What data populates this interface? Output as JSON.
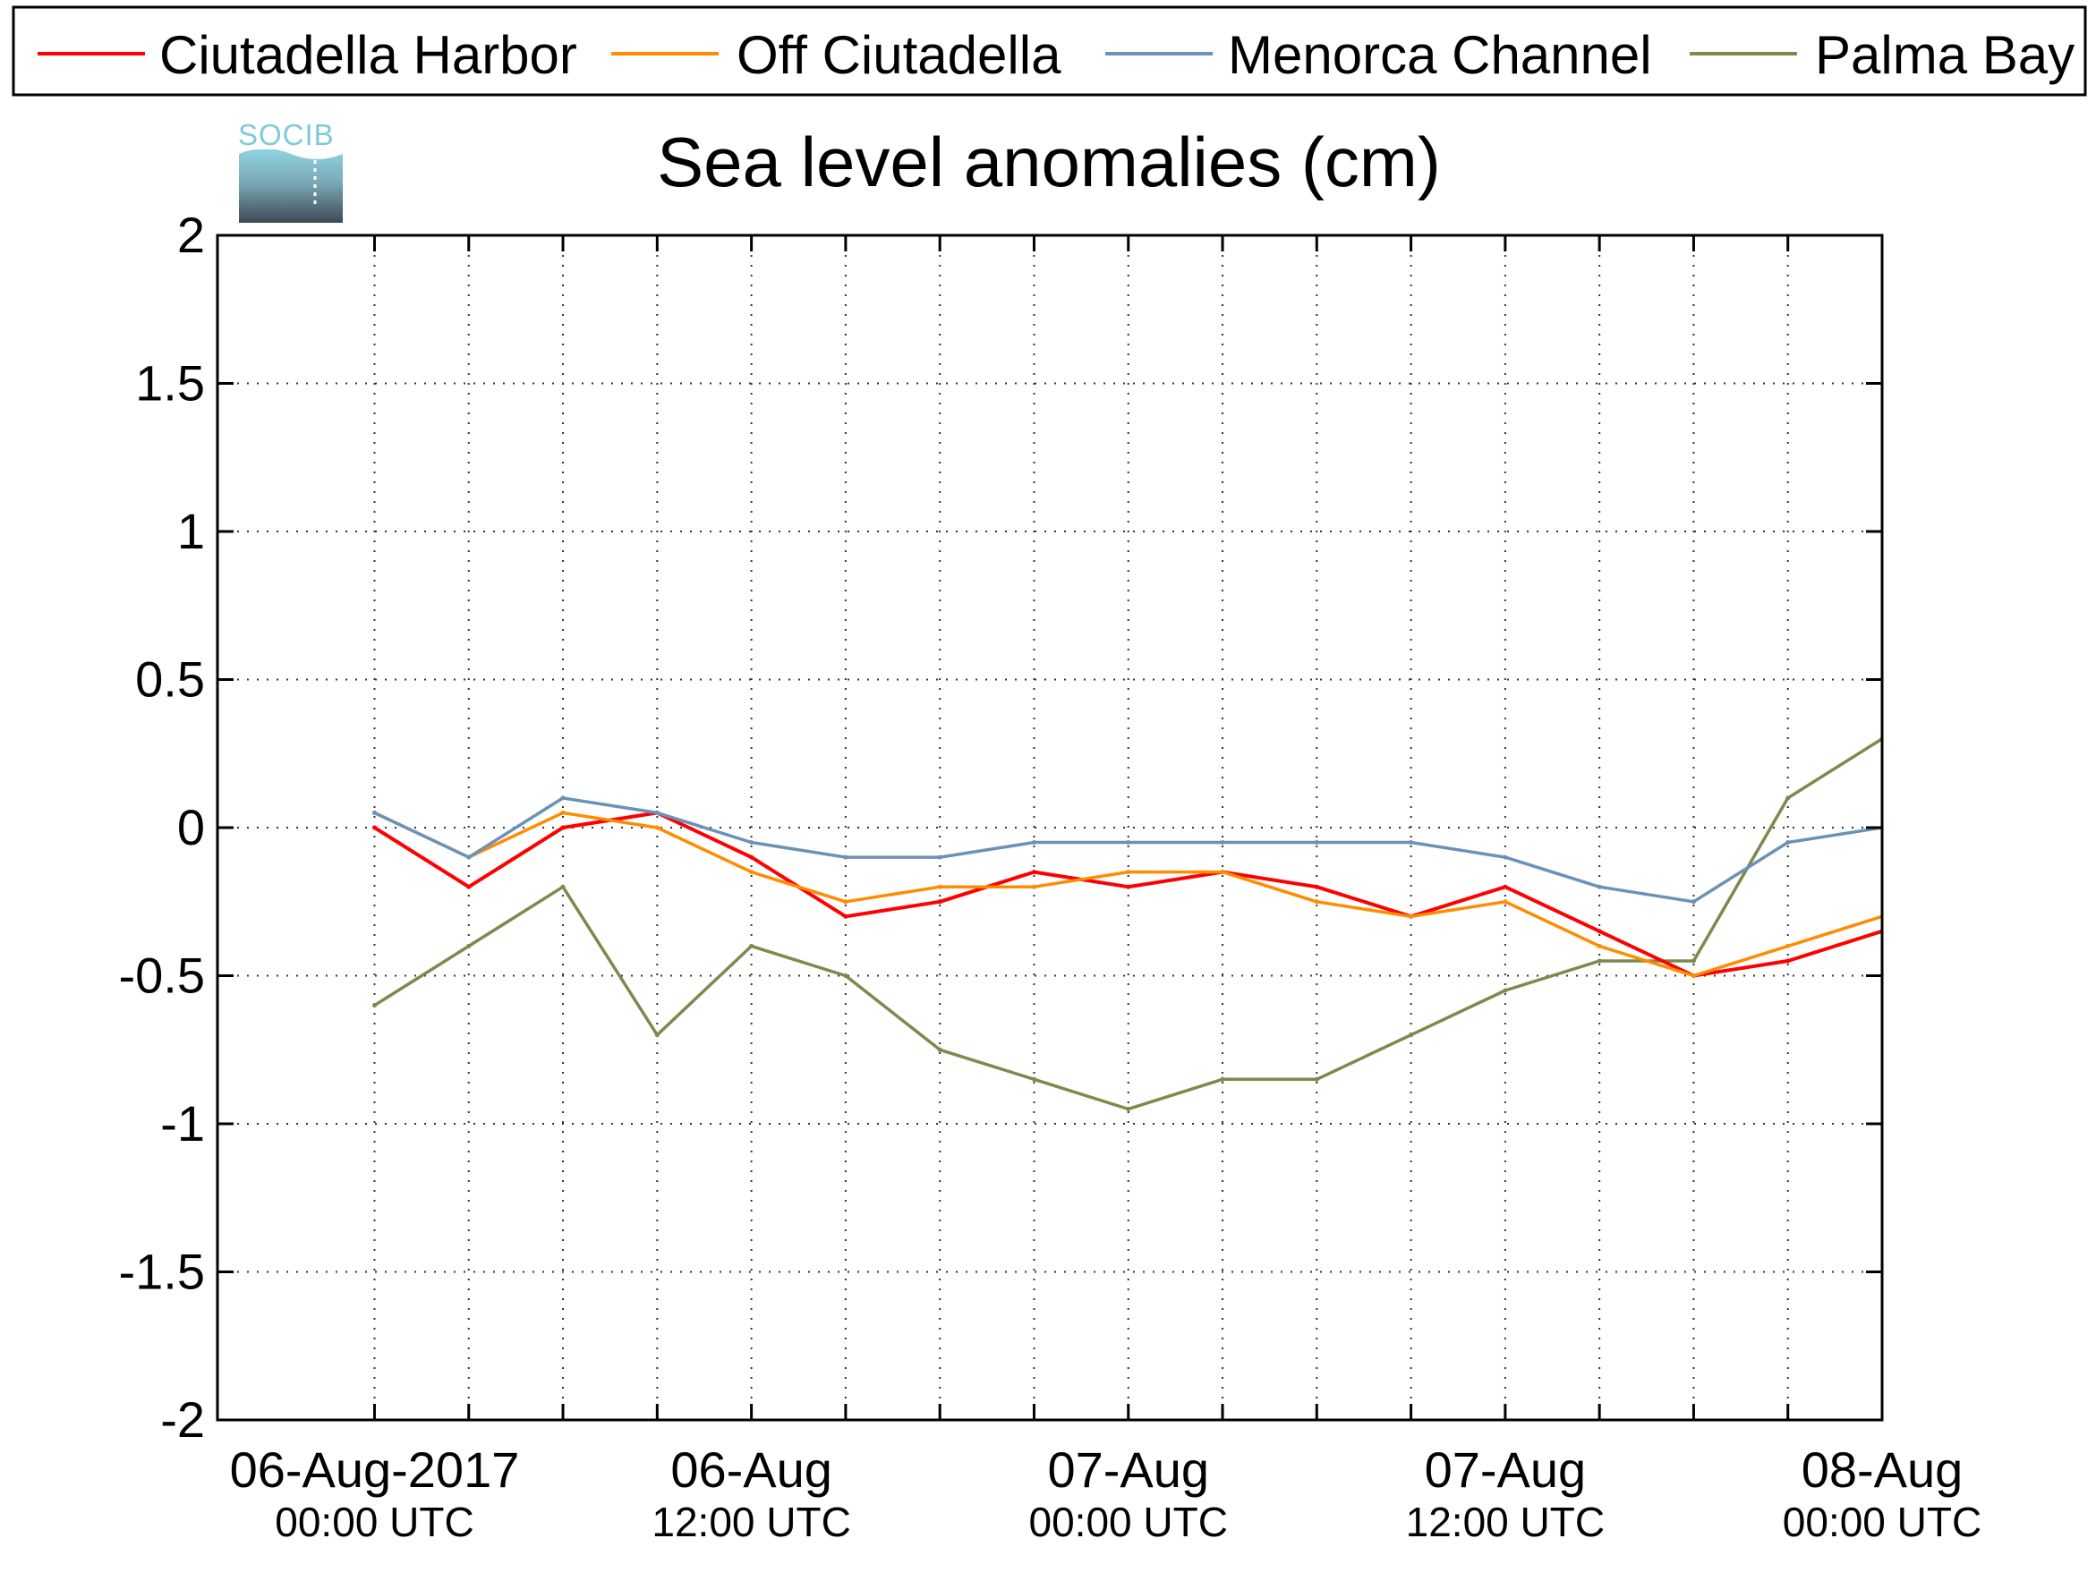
{
  "colors": {
    "ciutadella_harbor": "#ff0000",
    "off_ciutadella": "#ff8c00",
    "menorca_channel": "#6a92b8",
    "palma_bay": "#7a8b4c",
    "grid": "#333333",
    "axis": "#000000",
    "logo_top": "#8fd3e0",
    "logo_bottom": "#3d4a55"
  },
  "logo": {
    "text": "SOCIB"
  },
  "chart_data": {
    "type": "line",
    "title": "Sea level anomalies (cm)",
    "xlabel": "",
    "ylabel": "",
    "ylim": [
      -2,
      2
    ],
    "yticks": [
      -2,
      -1.5,
      -1,
      -0.5,
      0,
      0.5,
      1,
      1.5,
      2
    ],
    "ytick_labels": [
      "-2",
      "-1.5",
      "-1",
      "-0.5",
      "0",
      "0.5",
      "1",
      "1.5",
      "2"
    ],
    "xlim": [
      "2017-08-05 19:00 UTC",
      "2017-08-08 00:00 UTC"
    ],
    "x_grid_ticks": [
      "06-Aug 00:00",
      "06-Aug 03:00",
      "06-Aug 06:00",
      "06-Aug 09:00",
      "06-Aug 12:00",
      "06-Aug 15:00",
      "06-Aug 18:00",
      "06-Aug 21:00",
      "07-Aug 00:00",
      "07-Aug 03:00",
      "07-Aug 06:00",
      "07-Aug 09:00",
      "07-Aug 12:00",
      "07-Aug 15:00",
      "07-Aug 18:00",
      "07-Aug 21:00",
      "08-Aug 00:00"
    ],
    "x_labels": [
      {
        "at": "2017-08-06 00:00 UTC",
        "line1": "06-Aug-2017",
        "line2": "00:00 UTC"
      },
      {
        "at": "2017-08-06 12:00 UTC",
        "line1": "06-Aug",
        "line2": "12:00 UTC"
      },
      {
        "at": "2017-08-07 00:00 UTC",
        "line1": "07-Aug",
        "line2": "00:00 UTC"
      },
      {
        "at": "2017-08-07 12:00 UTC",
        "line1": "07-Aug",
        "line2": "12:00 UTC"
      },
      {
        "at": "2017-08-08 00:00 UTC",
        "line1": "08-Aug",
        "line2": "00:00 UTC"
      }
    ],
    "grid": true,
    "legend_position": "top",
    "series": [
      {
        "name": "Ciutadella Harbor",
        "color": "#ff0000",
        "x": [
          "06-Aug 00:00",
          "06-Aug 03:00",
          "06-Aug 06:00",
          "06-Aug 09:00",
          "06-Aug 12:00",
          "06-Aug 15:00",
          "06-Aug 18:00",
          "06-Aug 21:00",
          "07-Aug 00:00",
          "07-Aug 03:00",
          "07-Aug 06:00",
          "07-Aug 09:00",
          "07-Aug 12:00",
          "07-Aug 15:00",
          "07-Aug 18:00",
          "07-Aug 21:00",
          "08-Aug 00:00"
        ],
        "y": [
          0.0,
          -0.2,
          0.0,
          0.05,
          -0.1,
          -0.3,
          -0.25,
          -0.15,
          -0.2,
          -0.15,
          -0.2,
          -0.3,
          -0.2,
          -0.35,
          -0.5,
          -0.45,
          -0.35
        ]
      },
      {
        "name": "Off Ciutadella",
        "color": "#ff8c00",
        "x": [
          "06-Aug 00:00",
          "06-Aug 03:00",
          "06-Aug 06:00",
          "06-Aug 09:00",
          "06-Aug 12:00",
          "06-Aug 15:00",
          "06-Aug 18:00",
          "06-Aug 21:00",
          "07-Aug 00:00",
          "07-Aug 03:00",
          "07-Aug 06:00",
          "07-Aug 09:00",
          "07-Aug 12:00",
          "07-Aug 15:00",
          "07-Aug 18:00",
          "07-Aug 21:00",
          "08-Aug 00:00"
        ],
        "y": [
          0.05,
          -0.1,
          0.05,
          0.0,
          -0.15,
          -0.25,
          -0.2,
          -0.2,
          -0.15,
          -0.15,
          -0.25,
          -0.3,
          -0.25,
          -0.4,
          -0.5,
          -0.4,
          -0.3
        ]
      },
      {
        "name": "Menorca Channel",
        "color": "#6a92b8",
        "x": [
          "06-Aug 00:00",
          "06-Aug 03:00",
          "06-Aug 06:00",
          "06-Aug 09:00",
          "06-Aug 12:00",
          "06-Aug 15:00",
          "06-Aug 18:00",
          "06-Aug 21:00",
          "07-Aug 00:00",
          "07-Aug 03:00",
          "07-Aug 06:00",
          "07-Aug 09:00",
          "07-Aug 12:00",
          "07-Aug 15:00",
          "07-Aug 18:00",
          "07-Aug 21:00",
          "08-Aug 00:00"
        ],
        "y": [
          0.05,
          -0.1,
          0.1,
          0.05,
          -0.05,
          -0.1,
          -0.1,
          -0.05,
          -0.05,
          -0.05,
          -0.05,
          -0.05,
          -0.1,
          -0.2,
          -0.25,
          -0.05,
          0.0
        ]
      },
      {
        "name": "Palma Bay",
        "color": "#7a8b4c",
        "x": [
          "06-Aug 00:00",
          "06-Aug 03:00",
          "06-Aug 06:00",
          "06-Aug 09:00",
          "06-Aug 12:00",
          "06-Aug 15:00",
          "06-Aug 18:00",
          "06-Aug 21:00",
          "07-Aug 00:00",
          "07-Aug 03:00",
          "07-Aug 06:00",
          "07-Aug 09:00",
          "07-Aug 12:00",
          "07-Aug 15:00",
          "07-Aug 18:00",
          "07-Aug 21:00",
          "08-Aug 00:00"
        ],
        "y": [
          -0.6,
          -0.4,
          -0.2,
          -0.7,
          -0.4,
          -0.5,
          -0.75,
          -0.85,
          -0.95,
          -0.85,
          -0.85,
          -0.7,
          -0.55,
          -0.45,
          -0.45,
          0.1,
          0.3
        ]
      }
    ]
  }
}
